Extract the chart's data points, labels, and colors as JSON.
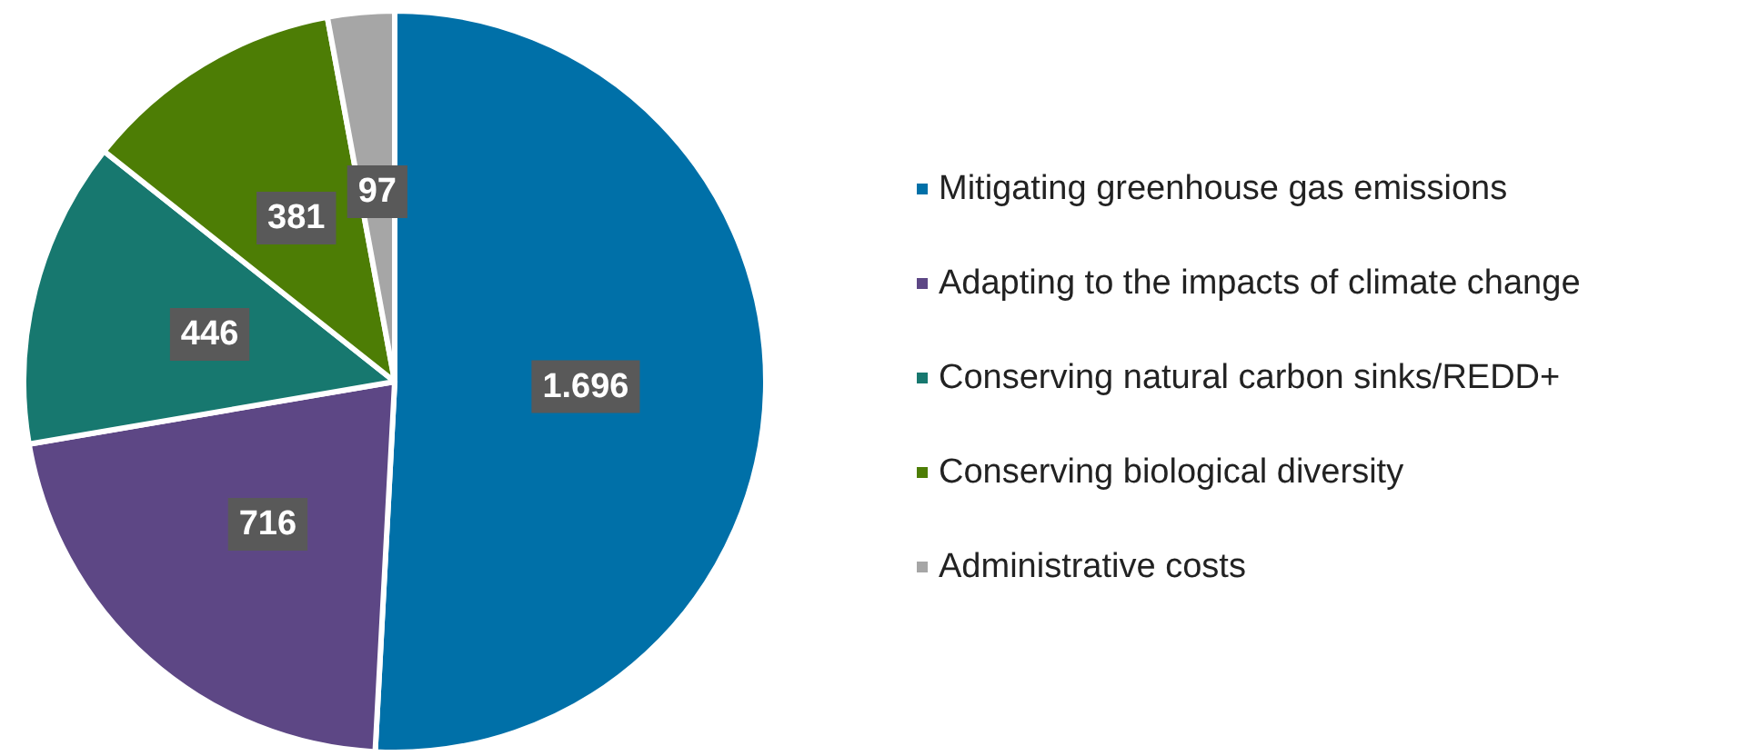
{
  "chart_data": {
    "type": "pie",
    "categories": [
      "Mitigating greenhouse gas emissions",
      "Adapting to the impacts of climate change",
      "Conserving natural carbon sinks/REDD+",
      "Conserving biological diversity",
      "Administrative costs"
    ],
    "values": [
      1696,
      716,
      446,
      381,
      97
    ],
    "value_labels": [
      "1.696",
      "716",
      "446",
      "381",
      "97"
    ],
    "colors": [
      "#0070a8",
      "#5d4785",
      "#17786f",
      "#4d7d05",
      "#a6a6a6"
    ],
    "legend": "right"
  }
}
